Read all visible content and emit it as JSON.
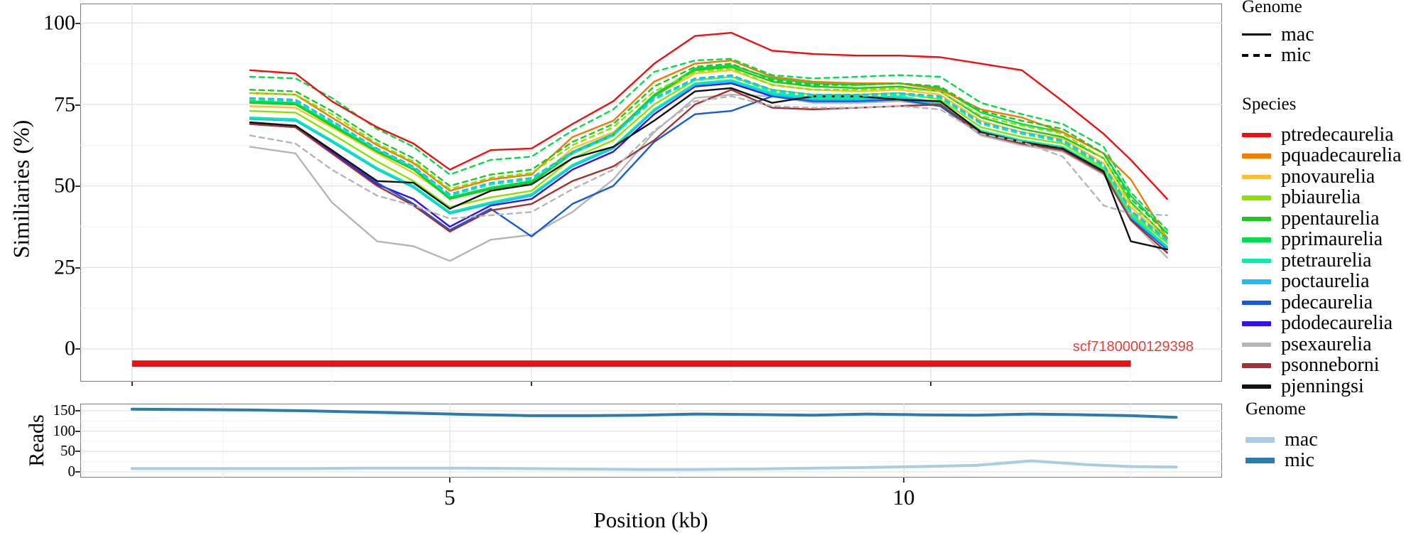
{
  "axes": {
    "main_ylabel": "Similiaries (%)",
    "reads_ylabel": "Reads",
    "xlabel": "Position (kb)",
    "main_ytick_labels": [
      "100",
      "75",
      "50",
      "25",
      "0"
    ],
    "reads_ytick_labels": [
      "150",
      "100",
      "50",
      "0"
    ],
    "xtick_labels": [
      "5",
      "10"
    ]
  },
  "legend_genome_top": {
    "title": "Genome",
    "items": [
      {
        "label": "mac",
        "style": "solid"
      },
      {
        "label": "mic",
        "style": "dashed"
      }
    ]
  },
  "legend_species": {
    "title": "Species",
    "items": [
      {
        "label": "ptredecaurelia",
        "color": "#ee0f0f"
      },
      {
        "label": "pquadecaurelia",
        "color": "#f07c00"
      },
      {
        "label": "pnovaurelia",
        "color": "#ffc125"
      },
      {
        "label": "pbiaurelia",
        "color": "#8ee000"
      },
      {
        "label": "ppentaurelia",
        "color": "#1dc71d"
      },
      {
        "label": "pprimaurelia",
        "color": "#00dc4b"
      },
      {
        "label": "ptetraurelia",
        "color": "#00efad"
      },
      {
        "label": "poctaurelia",
        "color": "#1fbdf2"
      },
      {
        "label": "pdecaurelia",
        "color": "#1659de"
      },
      {
        "label": "pdodecaurelia",
        "color": "#3412e3"
      },
      {
        "label": "psexaurelia",
        "color": "#b5b5b5"
      },
      {
        "label": "psonneborni",
        "color": "#a03232"
      },
      {
        "label": "pjenningsi",
        "color": "#111111"
      }
    ]
  },
  "legend_genome_bottom": {
    "title": "Genome",
    "items": [
      {
        "label": "mac",
        "color": "#a9cce3"
      },
      {
        "label": "mic",
        "color": "#2b7bac"
      }
    ]
  },
  "chart_data": [
    {
      "type": "line",
      "ylabel": "Similiaries (%)",
      "xlabel": "Position (kb)",
      "xlim": [
        0.93,
        13.5
      ],
      "ylim": [
        -10,
        106
      ],
      "yticks": [
        0,
        25,
        50,
        75,
        100
      ],
      "xticks": [
        5,
        10
      ],
      "grid": true,
      "legend_position": "right",
      "x": [
        2.8,
        3.3,
        3.7,
        4.2,
        4.6,
        5.0,
        5.45,
        5.9,
        6.35,
        6.8,
        7.25,
        7.7,
        8.1,
        8.55,
        9.0,
        9.5,
        9.95,
        10.4,
        10.85,
        11.3,
        11.75,
        12.2,
        12.5,
        12.9
      ],
      "series": [
        {
          "name": "ptredecaurelia-mac",
          "species": "ptredecaurelia",
          "genome": "mac",
          "color": "#ee0f0f",
          "dash": false,
          "values": [
            85.5,
            84.5,
            76,
            68,
            63,
            55,
            61,
            61.5,
            69,
            76,
            87.5,
            96,
            97,
            91.5,
            90.5,
            90,
            90,
            89.5,
            87.5,
            85.5,
            76,
            66,
            58,
            46
          ]
        },
        {
          "name": "pquadecaurelia-mac",
          "species": "pquadecaurelia",
          "genome": "mac",
          "color": "#f07c00",
          "dash": false,
          "values": [
            78.5,
            78,
            71,
            62.5,
            57,
            48.5,
            52,
            53.5,
            65,
            70,
            82,
            87.5,
            88.5,
            83.5,
            82,
            81.5,
            81.5,
            79.5,
            73.5,
            71,
            66.5,
            60,
            52,
            34
          ]
        },
        {
          "name": "pnovaurelia-mac",
          "species": "pnovaurelia",
          "genome": "mac",
          "color": "#ffc125",
          "dash": false,
          "values": [
            74.5,
            74,
            68,
            60,
            54,
            46.5,
            49.5,
            51,
            61.5,
            66.5,
            77.5,
            84.5,
            85.5,
            81,
            79.5,
            79,
            79.5,
            78,
            70,
            66.5,
            64.5,
            57,
            43.5,
            33.5
          ]
        },
        {
          "name": "pbiaurelia-mac",
          "species": "pbiaurelia",
          "genome": "mac",
          "color": "#8ee000",
          "dash": false,
          "values": [
            73,
            72.5,
            66,
            57.5,
            51.5,
            43.5,
            46.5,
            48.5,
            58.5,
            64,
            75,
            82.5,
            83.5,
            79.5,
            78,
            78,
            78.5,
            76.5,
            68,
            65,
            63,
            55.5,
            41.5,
            32.5
          ]
        },
        {
          "name": "ppentaurelia-mac",
          "species": "ppentaurelia",
          "genome": "mac",
          "color": "#1dc71d",
          "dash": false,
          "values": [
            75.5,
            75,
            68.5,
            60.5,
            55,
            46,
            49,
            51,
            60,
            65.5,
            77.5,
            85.5,
            86.5,
            82,
            80.5,
            80,
            80.5,
            79,
            71,
            67.5,
            65,
            58.5,
            45,
            34
          ]
        },
        {
          "name": "pprimaurelia-mac",
          "species": "pprimaurelia",
          "genome": "mac",
          "color": "#00dc4b",
          "dash": false,
          "values": [
            76,
            75.5,
            69,
            61,
            55.5,
            46.5,
            49.5,
            51.5,
            60.5,
            66,
            78,
            86,
            87,
            83,
            81.5,
            81,
            81.5,
            80,
            72.5,
            69,
            66.5,
            60,
            47,
            35.5
          ]
        },
        {
          "name": "ptetraurelia-mac",
          "species": "ptetraurelia",
          "genome": "mac",
          "color": "#00efad",
          "dash": false,
          "values": [
            71,
            70.5,
            64,
            55.5,
            50,
            42,
            45,
            47.5,
            56.5,
            62,
            73.5,
            81.5,
            82.5,
            78.5,
            77,
            77,
            77.5,
            75.5,
            67,
            64,
            62,
            55,
            41,
            31.5
          ]
        },
        {
          "name": "poctaurelia-mac",
          "species": "poctaurelia",
          "genome": "mac",
          "color": "#1fbdf2",
          "dash": false,
          "values": [
            70.5,
            70,
            63.5,
            55,
            49.5,
            41.5,
            44.5,
            47,
            56,
            61.5,
            73,
            81,
            82,
            78,
            76.5,
            76.5,
            77,
            75,
            66.5,
            63.5,
            61.5,
            54.5,
            40.5,
            31
          ]
        },
        {
          "name": "pdecaurelia-mac",
          "species": "pdecaurelia",
          "genome": "mac",
          "color": "#1659de",
          "dash": false,
          "values": [
            69.5,
            68.5,
            61,
            51,
            44.5,
            36.5,
            43,
            34.5,
            44.5,
            50,
            63.5,
            72,
            73,
            77.5,
            76,
            76,
            76.5,
            74.5,
            66,
            63,
            61,
            54,
            40,
            30.5
          ]
        },
        {
          "name": "pdodecaurelia-mac",
          "species": "pdodecaurelia",
          "genome": "mac",
          "color": "#3412e3",
          "dash": false,
          "values": [
            69,
            68,
            60.5,
            50.5,
            46,
            37.5,
            44,
            46,
            55,
            60.5,
            72,
            80.5,
            81.5,
            77.5,
            76,
            76,
            76.5,
            74.5,
            66,
            63,
            61,
            54,
            40.5,
            31
          ]
        },
        {
          "name": "psexaurelia-mac",
          "species": "psexaurelia",
          "genome": "mac",
          "color": "#b5b5b5",
          "dash": false,
          "values": [
            62,
            60,
            45,
            33,
            31.5,
            27,
            33.5,
            35,
            42,
            52,
            66.5,
            77,
            78,
            77.5,
            75.5,
            75.5,
            76,
            74.5,
            65.5,
            62.5,
            60.5,
            53.5,
            39.5,
            28
          ]
        },
        {
          "name": "psonneborni-mac",
          "species": "psonneborni",
          "genome": "mac",
          "color": "#a03232",
          "dash": false,
          "values": [
            69,
            68,
            60,
            50,
            44,
            36,
            42.5,
            44.5,
            51.5,
            56,
            64,
            75,
            79.5,
            74,
            73.5,
            74,
            74.5,
            75,
            66,
            63,
            61,
            54,
            39.5,
            29.5
          ]
        },
        {
          "name": "pjenningsi-mac",
          "species": "pjenningsi",
          "genome": "mac",
          "color": "#111111",
          "dash": false,
          "values": [
            69.5,
            68.5,
            61,
            51.5,
            51,
            43,
            48.5,
            50.5,
            58.5,
            62,
            70,
            79,
            80,
            75.5,
            77.5,
            77.5,
            76.5,
            76,
            66.5,
            63.5,
            61.5,
            54.5,
            33,
            30.5
          ]
        },
        {
          "name": "pprimaurelia-mic",
          "species": "pprimaurelia",
          "genome": "mic",
          "color": "#00dc4b",
          "dash": true,
          "values": [
            83.5,
            83,
            77,
            67.5,
            62,
            53.5,
            58,
            59,
            67,
            73.5,
            85,
            88.5,
            89,
            84,
            83,
            83.5,
            84,
            83.5,
            75.5,
            72,
            69,
            62,
            48,
            36.5
          ]
        },
        {
          "name": "ppentaurelia-mic",
          "species": "ppentaurelia",
          "genome": "mic",
          "color": "#1dc71d",
          "dash": true,
          "values": [
            79.5,
            79,
            73,
            64,
            58.5,
            50,
            53.5,
            55,
            63.5,
            69,
            80.5,
            86.5,
            87.5,
            82.5,
            81,
            81,
            81.5,
            80.5,
            73,
            70,
            67.5,
            60,
            46,
            35.5
          ]
        },
        {
          "name": "pbiaurelia-mic",
          "species": "pbiaurelia",
          "genome": "mic",
          "color": "#8ee000",
          "dash": true,
          "values": [
            78.5,
            78,
            72,
            63,
            57.5,
            49,
            52.5,
            54,
            62.5,
            68,
            79,
            85,
            86,
            81,
            79.5,
            79.5,
            80,
            79,
            71.5,
            68.5,
            66,
            58.5,
            44.5,
            34.5
          ]
        },
        {
          "name": "poctaurelia-mic",
          "species": "poctaurelia",
          "genome": "mic",
          "color": "#1fbdf2",
          "dash": true,
          "values": [
            77,
            76.5,
            70,
            61.5,
            56,
            47.5,
            51,
            52.5,
            60.5,
            66,
            77,
            83,
            84,
            79.5,
            78,
            78,
            78.5,
            77.5,
            69.5,
            66.5,
            64,
            56.5,
            42.5,
            33.5
          ]
        },
        {
          "name": "ptetraurelia-mic",
          "species": "ptetraurelia",
          "genome": "mic",
          "color": "#00efad",
          "dash": true,
          "values": [
            76.5,
            76,
            69.5,
            61,
            55.5,
            47,
            50.5,
            52,
            60,
            65.5,
            76.5,
            82.5,
            83.5,
            79,
            77.5,
            77.5,
            78,
            77,
            69,
            66,
            63.5,
            56,
            42,
            33
          ]
        },
        {
          "name": "psexaurelia-mic",
          "species": "psexaurelia",
          "genome": "mic",
          "color": "#b5b5b5",
          "dash": true,
          "values": [
            65.5,
            63,
            55,
            47,
            44,
            40,
            41,
            42,
            49,
            55,
            67,
            76,
            77.5,
            74.5,
            74,
            74,
            74.5,
            73.5,
            66,
            63.5,
            59,
            44,
            41.5,
            41
          ]
        }
      ],
      "annotation": {
        "label": "scf7180000129398",
        "bar_x_start_kb": 1.5,
        "bar_x_end_kb": 12.5,
        "bar_y_value": -4.5,
        "bar_color": "#ec1111",
        "label_color": "#e4403a"
      }
    },
    {
      "type": "line",
      "ylabel": "Reads",
      "xlim": [
        0.93,
        13.5
      ],
      "ylim": [
        -8,
        168
      ],
      "yticks": [
        0,
        50,
        100,
        150
      ],
      "xticks": [
        5,
        10
      ],
      "grid": true,
      "legend_position": "right",
      "x": [
        1.5,
        2.1,
        2.8,
        3.4,
        4.0,
        4.6,
        5.2,
        5.9,
        6.5,
        7.1,
        7.7,
        8.3,
        9.0,
        9.6,
        10.2,
        10.8,
        11.4,
        12.0,
        12.5,
        13.0
      ],
      "series": [
        {
          "name": "reads-mic",
          "genome": "mic",
          "color": "#2b7bac",
          "dash": false,
          "values": [
            154,
            153,
            152,
            150,
            147,
            144,
            141,
            138,
            138,
            139,
            142,
            141,
            139,
            142,
            140,
            139,
            142,
            140,
            138,
            134
          ]
        },
        {
          "name": "reads-mac",
          "genome": "mac",
          "color": "#a9cce3",
          "dash": false,
          "values": [
            8,
            8,
            8,
            8,
            9,
            9,
            9,
            8,
            7,
            6,
            6,
            7,
            9,
            11,
            13,
            16,
            27,
            18,
            13,
            12
          ]
        }
      ]
    }
  ]
}
